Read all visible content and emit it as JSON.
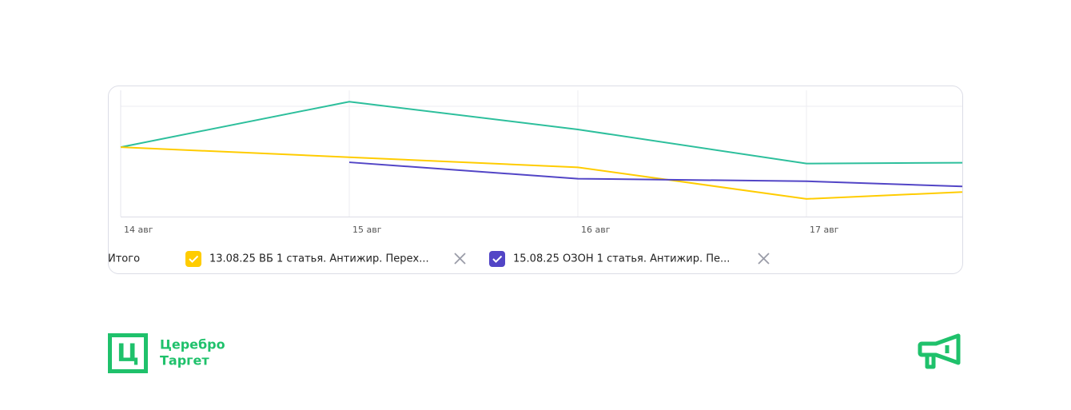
{
  "chart_data": {
    "type": "line",
    "categories": [
      "14 авг",
      "15 авг",
      "16 авг",
      "17 авг",
      null
    ],
    "ylim": [
      0,
      100
    ],
    "grid": true,
    "series": [
      {
        "name": "Итого",
        "color": "#2dbf9c",
        "values": [
          55,
          91,
          69,
          42,
          43
        ]
      },
      {
        "name": "13.08.25 ВБ 1 статья. Антижир. Перех...",
        "color": "#ffcc00",
        "values": [
          55,
          47,
          39,
          14,
          22
        ]
      },
      {
        "name": "15.08.25 ОЗОН 1 статья. Антижир. Пе...",
        "color": "#5245c6",
        "values": [
          null,
          43,
          30,
          28,
          22
        ]
      }
    ]
  },
  "logo": {
    "mark": "Ц",
    "line1": "Церебро",
    "line2": "Таргет"
  }
}
